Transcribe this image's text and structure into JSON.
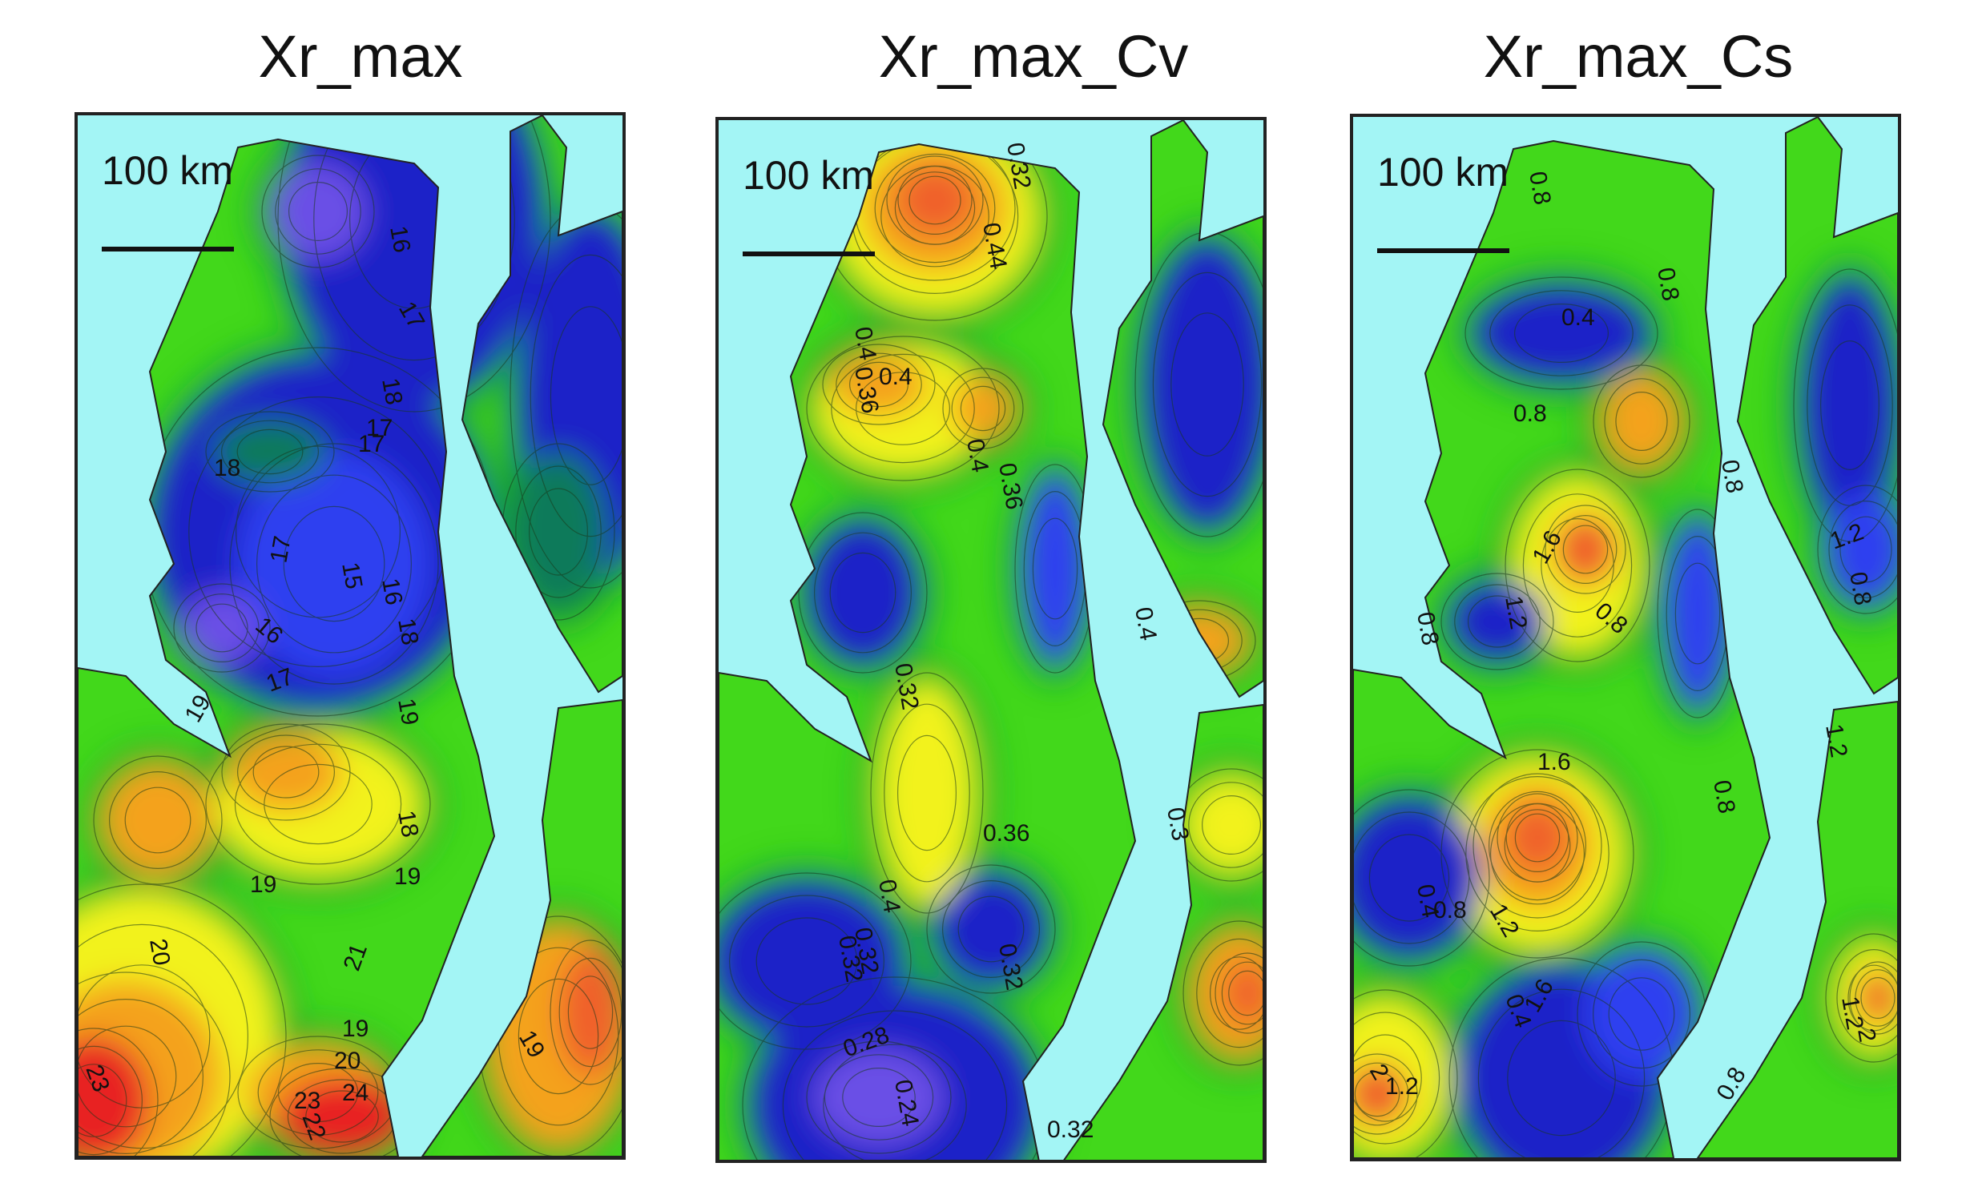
{
  "panels": [
    {
      "title": "Xr_max",
      "scale_label": "100 km",
      "contour_labels": [
        "16",
        "18",
        "17",
        "17",
        "17",
        "15",
        "16",
        "18",
        "16",
        "17",
        "19",
        "19",
        "18",
        "19",
        "20",
        "19",
        "18",
        "21",
        "19",
        "20",
        "23",
        "24",
        "22",
        "23",
        "19",
        "17"
      ]
    },
    {
      "title": "Xr_max_Cv",
      "scale_label": "100 km",
      "contour_labels": [
        "0.32",
        "0.44",
        "0.4",
        "0.36",
        "0.4",
        "0.4",
        "0.36",
        "0.32",
        "0.32",
        "0.36",
        "0.4",
        "0.32",
        "0.32",
        "0.28",
        "0.24",
        "0.32",
        "0.4",
        "0.3"
      ]
    },
    {
      "title": "Xr_max_Cs",
      "scale_label": "100 km",
      "contour_labels": [
        "0.8",
        "0.8",
        "0.4",
        "0.8",
        "0.8",
        "1.6",
        "1.2",
        "0.8",
        "0.8",
        "0.8",
        "1.2",
        "1.2",
        "1.6",
        "0.8",
        "0.4",
        "0.8",
        "1.2",
        "0.4",
        "1.6",
        "2",
        "1.2",
        "2",
        "0.8",
        "1.2"
      ]
    }
  ],
  "colors": {
    "water": "#a3f5f5",
    "blue_dark": "#1a22c8",
    "blue": "#2f3ff0",
    "violet": "#6a4fe6",
    "teal": "#0f7a5a",
    "green_dark": "#0f9d2e",
    "green": "#19d01c",
    "lime": "#8fe81a",
    "yellow": "#f2f21a",
    "orange": "#f4a21a",
    "red_orange": "#f0602a",
    "red": "#e82424"
  }
}
